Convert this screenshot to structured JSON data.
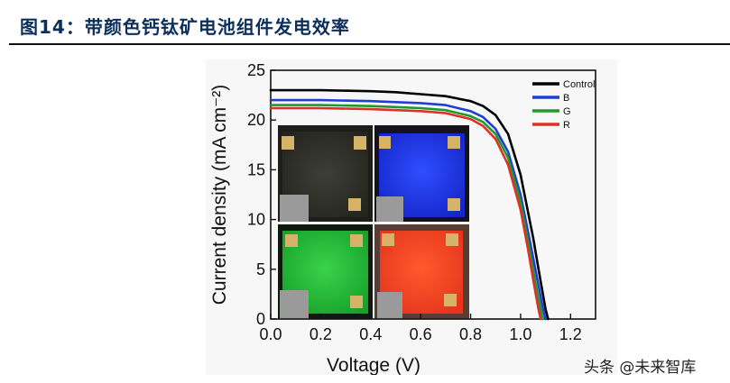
{
  "header": {
    "title": "图14：带颜色钙钛矿电池组件发电效率"
  },
  "watermark": {
    "text": "头条 @未来智库"
  },
  "colors": {
    "control": "#000000",
    "b": "#1e3ed6",
    "g": "#1f9a2c",
    "r": "#e0302a"
  },
  "chart_data": {
    "type": "line",
    "xlabel": "Voltage (V)",
    "ylabel": "Current density (mA cm⁻²)",
    "xlim": [
      0.0,
      1.3
    ],
    "ylim": [
      0,
      25
    ],
    "xticks": [
      0.0,
      0.2,
      0.4,
      0.6,
      0.8,
      1.0,
      1.2
    ],
    "xtick_labels": [
      "0.0",
      "0.2",
      "0.4",
      "0.6",
      "0.8",
      "1.0",
      "1.2"
    ],
    "yticks": [
      0,
      5,
      10,
      15,
      20,
      25
    ],
    "ytick_labels": [
      "0",
      "5",
      "10",
      "15",
      "20",
      "25"
    ],
    "legend_position": "top-right",
    "grid": false,
    "inset": "four colored module photographs (dark gray, blue, green, red) overlaid at lower-left",
    "series": [
      {
        "name": "Control",
        "color": "#000000",
        "x": [
          0.0,
          0.2,
          0.4,
          0.5,
          0.6,
          0.7,
          0.8,
          0.85,
          0.9,
          0.95,
          1.0,
          1.05,
          1.08,
          1.1,
          1.11
        ],
        "y": [
          23.0,
          23.0,
          22.9,
          22.8,
          22.6,
          22.4,
          21.9,
          21.4,
          20.5,
          18.6,
          14.5,
          8.2,
          3.8,
          1.0,
          0.0
        ]
      },
      {
        "name": "B",
        "color": "#1e3ed6",
        "x": [
          0.0,
          0.2,
          0.4,
          0.5,
          0.6,
          0.7,
          0.8,
          0.85,
          0.9,
          0.95,
          1.0,
          1.04,
          1.07,
          1.09,
          1.1
        ],
        "y": [
          22.0,
          22.0,
          21.9,
          21.8,
          21.7,
          21.5,
          20.9,
          20.3,
          19.1,
          16.8,
          12.5,
          7.5,
          3.6,
          1.0,
          0.0
        ]
      },
      {
        "name": "G",
        "color": "#1f9a2c",
        "x": [
          0.0,
          0.2,
          0.4,
          0.5,
          0.6,
          0.7,
          0.8,
          0.85,
          0.9,
          0.95,
          1.0,
          1.03,
          1.06,
          1.08,
          1.09
        ],
        "y": [
          21.5,
          21.5,
          21.4,
          21.3,
          21.2,
          21.0,
          20.4,
          19.8,
          18.6,
          16.2,
          11.8,
          7.8,
          3.6,
          1.0,
          0.0
        ]
      },
      {
        "name": "R",
        "color": "#e0302a",
        "x": [
          0.0,
          0.2,
          0.4,
          0.5,
          0.6,
          0.7,
          0.8,
          0.85,
          0.9,
          0.95,
          1.0,
          1.03,
          1.05,
          1.07,
          1.08
        ],
        "y": [
          21.2,
          21.2,
          21.1,
          21.0,
          20.9,
          20.7,
          20.1,
          19.4,
          18.1,
          15.5,
          11.0,
          7.0,
          4.0,
          1.2,
          0.0
        ]
      }
    ]
  }
}
